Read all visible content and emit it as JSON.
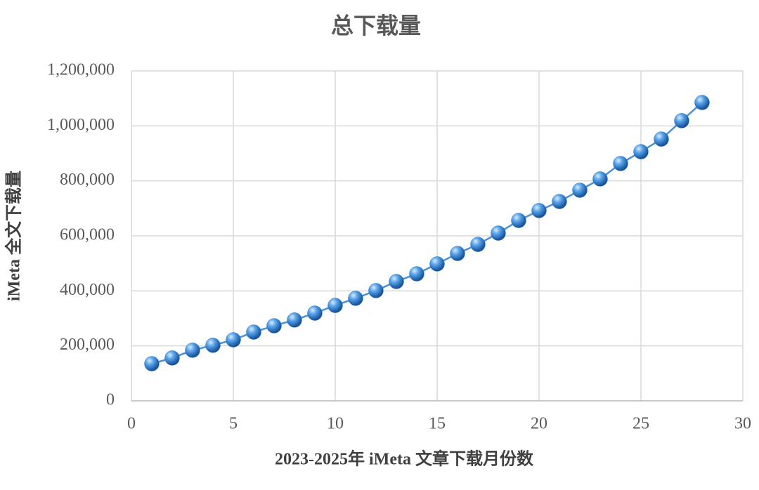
{
  "chart_data": {
    "type": "line",
    "title": "总下载量",
    "x_label": "2023-2025年 iMeta 文章下载月份数",
    "y_label": "iMeta 全文下载量",
    "x": [
      1,
      2,
      3,
      4,
      5,
      6,
      7,
      8,
      9,
      10,
      11,
      12,
      13,
      14,
      15,
      16,
      17,
      18,
      19,
      20,
      21,
      22,
      23,
      24,
      25,
      26,
      27,
      28
    ],
    "values": [
      135000,
      156000,
      184000,
      202000,
      222000,
      250000,
      273000,
      294000,
      319000,
      347000,
      373000,
      401000,
      434000,
      462000,
      498000,
      536000,
      569000,
      610000,
      656000,
      692000,
      725000,
      766000,
      807000,
      863000,
      906000,
      952000,
      1019000,
      1085000
    ],
    "color": "#2f7ccc",
    "line_color": "#4a90d9",
    "xlim": [
      0,
      30
    ],
    "xticks": [
      0,
      5,
      10,
      15,
      20,
      25,
      30
    ],
    "ylim": [
      0,
      1200000
    ],
    "yticks": [
      0,
      {
        "value": 200000,
        "label": "200,000"
      },
      {
        "value": 400000,
        "label": "400,000"
      },
      {
        "value": 600000,
        "label": "600,000"
      },
      {
        "value": 800000,
        "label": "800,000"
      },
      {
        "value": 1000000,
        "label": "1,000,000"
      },
      {
        "value": 1200000,
        "label": "1,200,000"
      }
    ],
    "grid": true
  }
}
